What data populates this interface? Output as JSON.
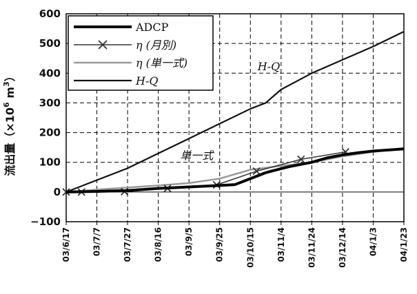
{
  "chart_data": {
    "type": "line",
    "ylabel": "流出量（×10",
    "ylabel_exp": "6",
    "ylabel_unit": "m",
    "ylabel_unit_exp": "3",
    "ylabel_close": "）",
    "ylim": [
      -100,
      600
    ],
    "yticks": [
      "600",
      "500",
      "400",
      "300",
      "200",
      "100",
      "0",
      "−100"
    ],
    "ytick_values": [
      600,
      500,
      400,
      300,
      200,
      100,
      0,
      -100
    ],
    "xticks": [
      "03/6/17",
      "03/7/7",
      "03/7/27",
      "03/8/16",
      "03/9/5",
      "03/9/25",
      "03/10/15",
      "03/11/4",
      "03/11/24",
      "03/12/14",
      "04/1/3",
      "04/1/23"
    ],
    "xlim": [
      0,
      220
    ],
    "grid": true,
    "legend_position": "top-left",
    "series": [
      {
        "name": "ADCP",
        "color": "#000000",
        "style": "thick",
        "points": [
          [
            0,
            0
          ],
          [
            20,
            2
          ],
          [
            40,
            5
          ],
          [
            60,
            12
          ],
          [
            80,
            17
          ],
          [
            100,
            22
          ],
          [
            110,
            25
          ],
          [
            115,
            35
          ],
          [
            125,
            55
          ],
          [
            130,
            65
          ],
          [
            135,
            72
          ],
          [
            145,
            85
          ],
          [
            160,
            100
          ],
          [
            170,
            115
          ],
          [
            180,
            125
          ],
          [
            190,
            132
          ],
          [
            200,
            138
          ],
          [
            220,
            145
          ]
        ]
      },
      {
        "name": "η (月別)",
        "color": "#333333",
        "style": "markers",
        "points": [
          [
            0,
            0
          ],
          [
            10,
            0
          ],
          [
            38,
            1
          ],
          [
            66,
            12
          ],
          [
            98,
            24
          ],
          [
            124,
            70
          ],
          [
            153,
            110
          ],
          [
            182,
            135
          ]
        ]
      },
      {
        "name": "η (単一式)",
        "color": "#999999",
        "style": "thin",
        "points": [
          [
            0,
            0
          ],
          [
            20,
            8
          ],
          [
            40,
            15
          ],
          [
            60,
            22
          ],
          [
            80,
            30
          ],
          [
            100,
            45
          ],
          [
            120,
            75
          ],
          [
            140,
            88
          ],
          [
            160,
            100
          ],
          [
            180,
            120
          ],
          [
            200,
            135
          ],
          [
            220,
            148
          ]
        ]
      },
      {
        "name": "H-Q",
        "color": "#111111",
        "style": "medium",
        "points": [
          [
            0,
            0
          ],
          [
            10,
            20
          ],
          [
            20,
            40
          ],
          [
            40,
            80
          ],
          [
            60,
            130
          ],
          [
            80,
            180
          ],
          [
            100,
            230
          ],
          [
            120,
            280
          ],
          [
            130,
            300
          ],
          [
            140,
            345
          ],
          [
            160,
            400
          ],
          [
            180,
            445
          ],
          [
            200,
            490
          ],
          [
            220,
            540
          ]
        ]
      }
    ],
    "annotations": [
      {
        "text": "H-Q",
        "x": 132,
        "y": 410
      },
      {
        "text": "単一式",
        "x": 85,
        "y": 110
      }
    ]
  }
}
